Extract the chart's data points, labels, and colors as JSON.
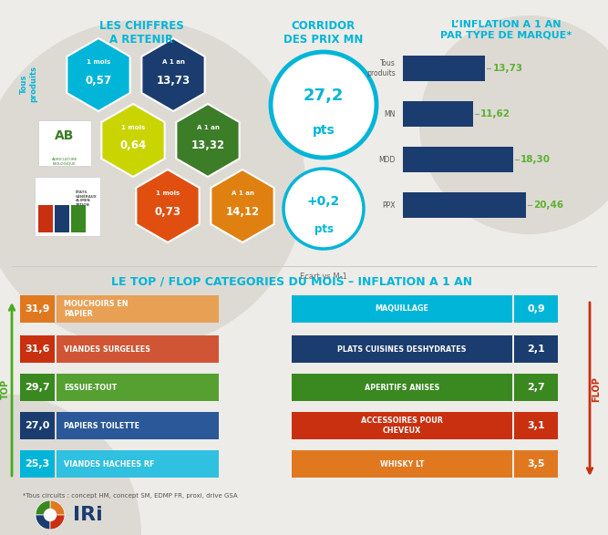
{
  "background_color": "#eeece8",
  "title_chiffres": "LES CHIFFRES\nA RETENIR",
  "title_corridor": "CORRIDOR\nDES PRIX MN",
  "title_inflation": "L’INFLATION A 1 AN\nPAR TYPE DE MARQUE*",
  "title_topflop": "LE TOP / FLOP CATEGORIES DU MOIS – INFLATION A 1 AN",
  "hex_rows": [
    [
      {
        "label": "1 mois",
        "value": "0,57",
        "color": "#00b5d8"
      },
      {
        "label": "A 1 an",
        "value": "13,73",
        "color": "#1b3c6e"
      }
    ],
    [
      {
        "label": "1 mois",
        "value": "0,64",
        "color": "#cad400"
      },
      {
        "label": "A 1 an",
        "value": "13,32",
        "color": "#3c7d28"
      }
    ],
    [
      {
        "label": "1 mois",
        "value": "0,73",
        "color": "#e04f10"
      },
      {
        "label": "A 1 an",
        "value": "14,12",
        "color": "#e08010"
      }
    ]
  ],
  "corridor_color": "#00b5d8",
  "corridor_big_value": "27,2",
  "corridor_big_unit": "pts",
  "corridor_small_value": "+0,2",
  "corridor_small_unit": "pts",
  "corridor_small_label": "Ecart vs M-1",
  "inflation_bars": {
    "categories": [
      "Tous\nproduits",
      "MN",
      "MDD",
      "PPX"
    ],
    "values": [
      13.73,
      11.62,
      18.3,
      20.46
    ],
    "labels": [
      "13,73",
      "11,62",
      "18,30",
      "20,46"
    ],
    "bar_color": "#1b3c6e",
    "label_color": "#5cb030"
  },
  "top_items": [
    {
      "value": "31,9",
      "label": "MOUCHOIRS EN\nPAPIER",
      "val_color": "#e07820",
      "lbl_color": "#e8a055"
    },
    {
      "value": "31,6",
      "label": "VIANDES SURGELEES",
      "val_color": "#c83010",
      "lbl_color": "#d05535"
    },
    {
      "value": "29,7",
      "label": "ESSUIE-TOUT",
      "val_color": "#3a8820",
      "lbl_color": "#55a030"
    },
    {
      "value": "27,0",
      "label": "PAPIERS TOILETTE",
      "val_color": "#1b3c6e",
      "lbl_color": "#2a5898"
    },
    {
      "value": "25,3",
      "label": "VIANDES HACHEES RF",
      "val_color": "#00b5d8",
      "lbl_color": "#30c0e0"
    }
  ],
  "flop_items": [
    {
      "value": "0,9",
      "label": "MAQUILLAGE",
      "val_color": "#00b5d8",
      "lbl_color": "#00b5d8"
    },
    {
      "value": "2,1",
      "label": "PLATS CUISINES DESHYDRATES",
      "val_color": "#1b3c6e",
      "lbl_color": "#1b3c6e"
    },
    {
      "value": "2,7",
      "label": "APERITIFS ANISES",
      "val_color": "#3a8820",
      "lbl_color": "#3a8820"
    },
    {
      "value": "3,1",
      "label": "ACCESSOIRES POUR\nCHEVEUX",
      "val_color": "#c83010",
      "lbl_color": "#c83010"
    },
    {
      "value": "3,5",
      "label": "WHISKY LT",
      "val_color": "#e07820",
      "lbl_color": "#e07820"
    }
  ],
  "footer_note": "*Tous circuits : concept HM, concept SM, EDMP FR, proxi, drive GSA",
  "blue_title_color": "#00b5d8",
  "dark_blue": "#1b3c6e",
  "green_arrow_color": "#4aaa20",
  "red_arrow_color": "#c83010"
}
